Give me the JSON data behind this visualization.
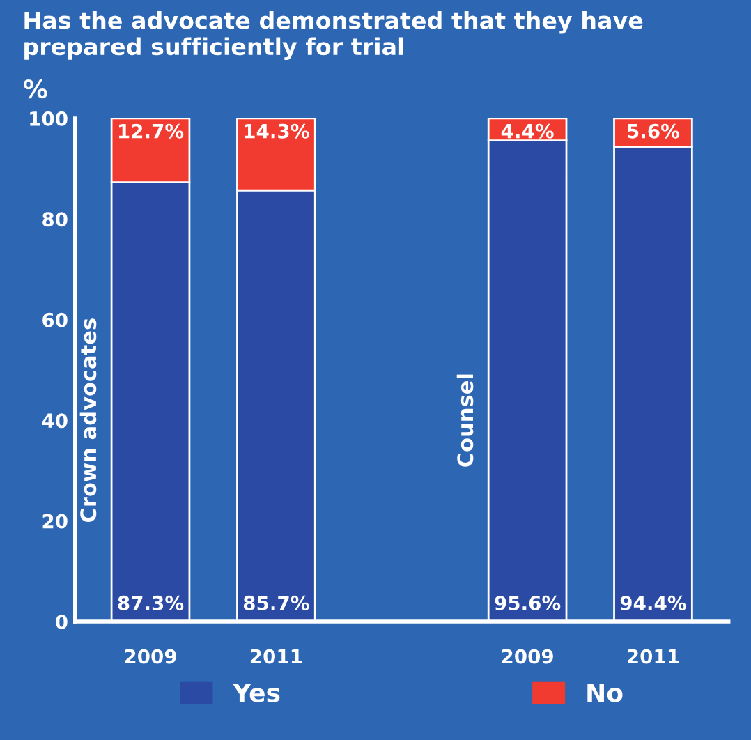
{
  "chart_data": {
    "type": "bar",
    "stacked": true,
    "title": "Has the advocate demonstrated that they have prepared sufficiently for trial",
    "ylabel": "%",
    "categories": [
      "2009",
      "2011",
      null,
      "2009",
      "2011"
    ],
    "series": [
      {
        "name": "Yes",
        "color": "#2a4aa3",
        "values": [
          87.3,
          85.7,
          null,
          95.6,
          94.4
        ],
        "value_labels": [
          "87.3%",
          "85.7%",
          null,
          "95.6%",
          "94.4%"
        ]
      },
      {
        "name": "No",
        "color": "#f23b30",
        "values": [
          12.7,
          14.3,
          null,
          4.4,
          5.6
        ],
        "value_labels": [
          "12.7%",
          "14.3%",
          null,
          "4.4%",
          "5.6%"
        ]
      }
    ],
    "annotations": [
      "Crown advocates",
      "Counsel"
    ],
    "ylim": [
      0,
      100
    ],
    "yticks": [
      0,
      20,
      40,
      60,
      80,
      100
    ],
    "grid": false,
    "legend": "bottom"
  }
}
